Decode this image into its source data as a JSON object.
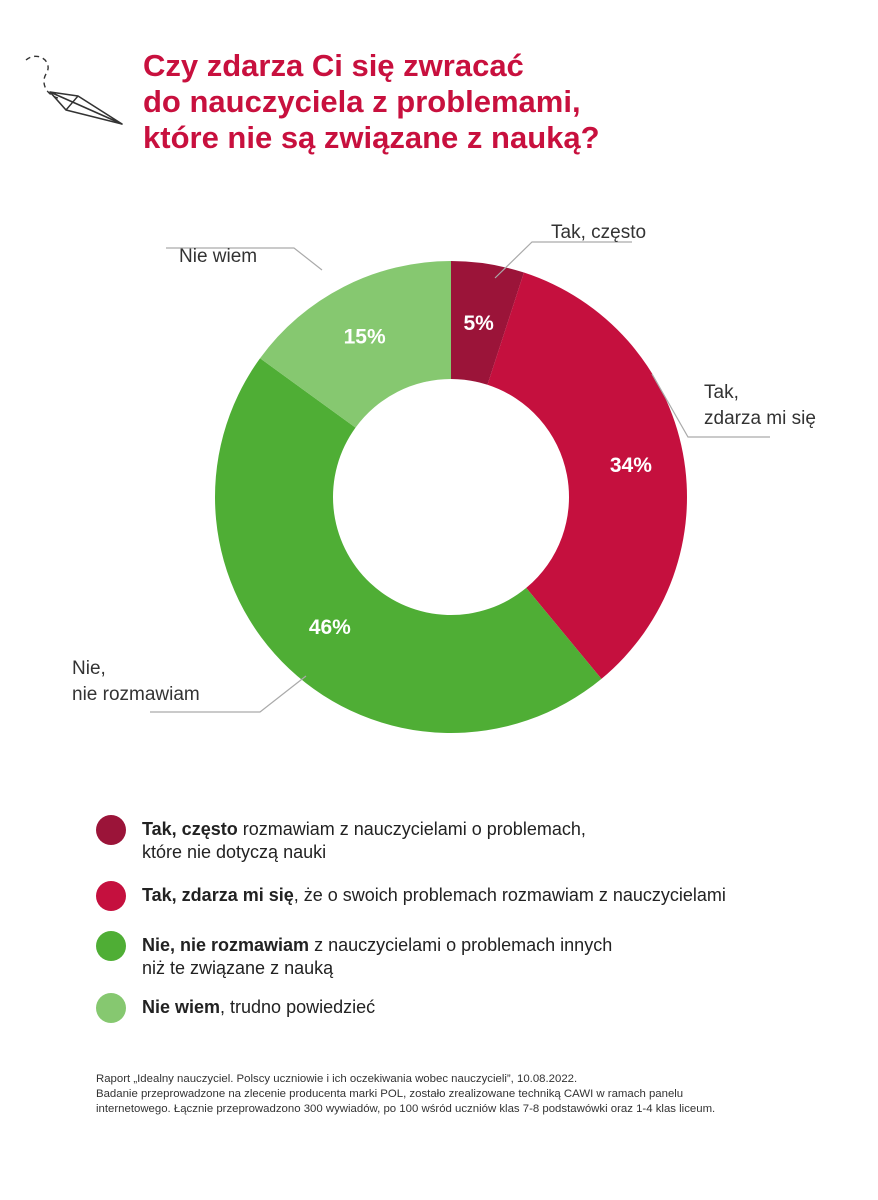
{
  "title_lines": [
    "Czy zdarza Ci się zwracać",
    "do nauczyciela z problemami,",
    "które nie są związane z nauką?"
  ],
  "decoration": {
    "icon": "paper-plane-icon"
  },
  "chart_data": {
    "type": "pie",
    "donut": true,
    "title": "Czy zdarza Ci się zwracać do nauczyciela z problemami, które nie są związane z nauką?",
    "categories": [
      "Tak, często",
      "Tak, zdarza mi się",
      "Nie, nie rozmawiam",
      "Nie wiem"
    ],
    "values": [
      5,
      34,
      46,
      15
    ],
    "value_labels": [
      "5%",
      "34%",
      "46%",
      "15%"
    ],
    "colors": [
      "#9b1439",
      "#c5103e",
      "#4fae35",
      "#86c870"
    ],
    "callouts": [
      {
        "lines": [
          "Tak, często"
        ]
      },
      {
        "lines": [
          "Tak,",
          "zdarza mi się"
        ]
      },
      {
        "lines": [
          "Nie,",
          "nie rozmawiam"
        ]
      },
      {
        "lines": [
          "Nie wiem"
        ]
      }
    ]
  },
  "legend": [
    {
      "bold": "Tak, często",
      "rest": " rozmawiam z nauczycielami o problemach,",
      "line2": "które nie dotyczą nauki",
      "color": "#9b1439"
    },
    {
      "bold": "Tak, zdarza mi się",
      "rest": ", że o swoich problemach rozmawiam z nauczycielami",
      "line2": "",
      "color": "#c5103e"
    },
    {
      "bold": "Nie, nie rozmawiam",
      "rest": " z nauczycielami o problemach innych",
      "line2": "niż te związane z nauką",
      "color": "#4fae35"
    },
    {
      "bold": "Nie wiem",
      "rest": ", trudno powiedzieć",
      "line2": "",
      "color": "#86c870"
    }
  ],
  "source_lines": [
    "Raport „Idealny nauczyciel. Polscy uczniowie i ich oczekiwania wobec nauczycieli”, 10.08.2022.",
    "Badanie przeprowadzone na zlecenie producenta marki POL, zostało zrealizowane techniką CAWI w ramach panelu",
    "internetowego. Łącznie przeprowadzono 300 wywiadów, po 100 wśród uczniów klas 7-8 podstawówki oraz 1-4 klas liceum."
  ]
}
